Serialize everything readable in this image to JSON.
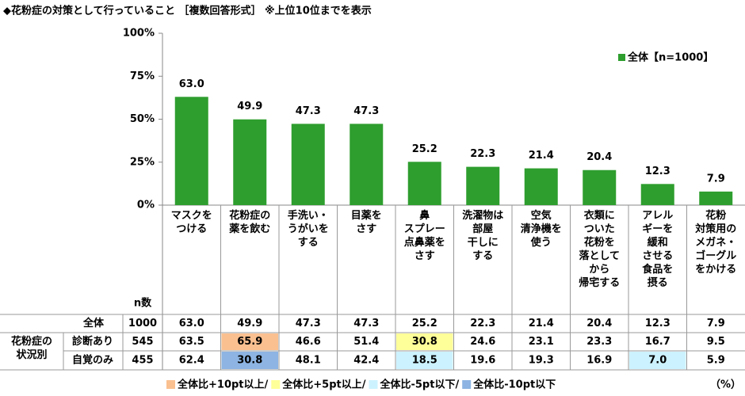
{
  "chart_data": {
    "type": "bar",
    "title": "◆花粉症の対策として行っていること ［複数回答形式］ ※上位10位までを表示",
    "categories": [
      "マスクを\nつける",
      "花粉症の\n薬を飲む",
      "手洗い・\nうがいを\nする",
      "目薬を\nさす",
      "鼻\nスプレー\n点鼻薬を\nさす",
      "洗濯物は\n部屋\n干しに\nする",
      "空気\n清浄機を\n使う",
      "衣類に\nついた\n花粉を\n落として\nから\n帰宅する",
      "アレル\nギーを\n緩和\nさせる\n食品を\n摂る",
      "花粉\n対策用の\nメガネ・\nゴーグル\nをかける"
    ],
    "series_name": "全体【n=1000】",
    "color": "#2e9e2e",
    "values": [
      63.0,
      49.9,
      47.3,
      47.3,
      25.2,
      22.3,
      21.4,
      20.4,
      12.3,
      7.9
    ],
    "value_labels": [
      "63.0",
      "49.9",
      "47.3",
      "47.3",
      "25.2",
      "22.3",
      "21.4",
      "20.4",
      "12.3",
      "7.9"
    ],
    "ylim": [
      0,
      100
    ],
    "yticks": [
      {
        "value": 0,
        "label": "0%"
      },
      {
        "value": 25,
        "label": "25%"
      },
      {
        "value": 50,
        "label": "50%"
      },
      {
        "value": 75,
        "label": "75%"
      },
      {
        "value": 100,
        "label": "100%"
      }
    ],
    "grid": false
  },
  "table": {
    "n_header": "n数",
    "group_label": "花粉症の\n状況別",
    "rows": [
      {
        "label": "全体",
        "n": "1000",
        "values": [
          "63.0",
          "49.9",
          "47.3",
          "47.3",
          "25.2",
          "22.3",
          "21.4",
          "20.4",
          "12.3",
          "7.9"
        ]
      },
      {
        "label": "診断あり",
        "n": "545",
        "values": [
          "63.5",
          "65.9",
          "46.6",
          "51.4",
          "30.8",
          "24.6",
          "23.1",
          "23.3",
          "16.7",
          "9.5"
        ],
        "colors": [
          null,
          "#fac090",
          null,
          null,
          "#ffff99",
          null,
          null,
          null,
          null,
          null
        ]
      },
      {
        "label": "自覚のみ",
        "n": "455",
        "values": [
          "62.4",
          "30.8",
          "48.1",
          "42.4",
          "18.5",
          "19.6",
          "19.3",
          "16.9",
          "7.0",
          "5.9"
        ],
        "colors": [
          null,
          "#8db4e2",
          null,
          null,
          "#ccf2ff",
          null,
          null,
          null,
          "#ccf2ff",
          null
        ]
      }
    ],
    "legend_items": [
      {
        "label": "全体比+10pt以上/",
        "color": "#fac090"
      },
      {
        "label": "全体比+5pt以上/",
        "color": "#ffff99"
      },
      {
        "label": "全体比-5pt以下/",
        "color": "#ccf2ff"
      },
      {
        "label": "全体比-10pt以下",
        "color": "#8db4e2"
      }
    ],
    "unit": "（%）"
  }
}
